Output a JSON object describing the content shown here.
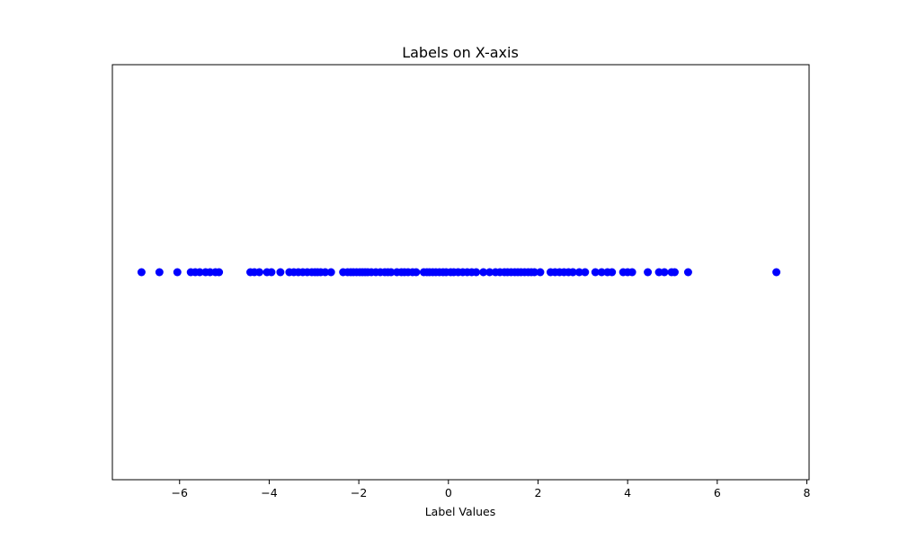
{
  "chart_data": {
    "type": "scatter",
    "title": "Labels on X-axis",
    "xlabel": "Label Values",
    "ylabel": "",
    "xlim": [
      -7.5,
      8.05
    ],
    "x_ticks": [
      -6,
      -4,
      -2,
      0,
      2,
      4,
      6,
      8
    ],
    "x_tick_labels": [
      "−6",
      "−4",
      "−2",
      "0",
      "2",
      "4",
      "6",
      "8"
    ],
    "y_ticks_visible": false,
    "grid": false,
    "legend": "none",
    "marker": "circle",
    "color": "#0000ff",
    "series": [
      {
        "x": [
          -6.85,
          -6.45,
          -6.05,
          -5.75,
          -5.65,
          -5.55,
          -5.42,
          -5.32,
          -5.2,
          -5.12,
          -4.42,
          -4.33,
          -4.22,
          -4.05,
          -3.95,
          -3.75,
          -3.55,
          -3.45,
          -3.35,
          -3.25,
          -3.15,
          -3.05,
          -2.98,
          -2.92,
          -2.85,
          -2.75,
          -2.62,
          -2.35,
          -2.25,
          -2.18,
          -2.12,
          -2.05,
          -1.98,
          -1.92,
          -1.86,
          -1.8,
          -1.72,
          -1.62,
          -1.52,
          -1.42,
          -1.35,
          -1.28,
          -1.15,
          -1.05,
          -0.98,
          -0.9,
          -0.8,
          -0.72,
          -0.55,
          -0.48,
          -0.42,
          -0.35,
          -0.28,
          -0.2,
          -0.12,
          -0.05,
          0.05,
          0.12,
          0.22,
          0.32,
          0.42,
          0.52,
          0.62,
          0.78,
          0.92,
          1.05,
          1.15,
          1.25,
          1.32,
          1.4,
          1.48,
          1.55,
          1.62,
          1.7,
          1.78,
          1.85,
          1.92,
          2.05,
          2.28,
          2.38,
          2.48,
          2.58,
          2.68,
          2.78,
          2.92,
          3.05,
          3.28,
          3.42,
          3.55,
          3.65,
          3.9,
          4.0,
          4.1,
          4.45,
          4.7,
          4.82,
          4.98,
          5.05,
          5.35,
          7.32
        ],
        "y": [
          0,
          0,
          0,
          0,
          0,
          0,
          0,
          0,
          0,
          0,
          0,
          0,
          0,
          0,
          0,
          0,
          0,
          0,
          0,
          0,
          0,
          0,
          0,
          0,
          0,
          0,
          0,
          0,
          0,
          0,
          0,
          0,
          0,
          0,
          0,
          0,
          0,
          0,
          0,
          0,
          0,
          0,
          0,
          0,
          0,
          0,
          0,
          0,
          0,
          0,
          0,
          0,
          0,
          0,
          0,
          0,
          0,
          0,
          0,
          0,
          0,
          0,
          0,
          0,
          0,
          0,
          0,
          0,
          0,
          0,
          0,
          0,
          0,
          0,
          0,
          0,
          0,
          0,
          0,
          0,
          0,
          0,
          0,
          0,
          0,
          0,
          0,
          0,
          0,
          0,
          0,
          0,
          0,
          0,
          0,
          0,
          0,
          0,
          0,
          0
        ]
      }
    ]
  }
}
